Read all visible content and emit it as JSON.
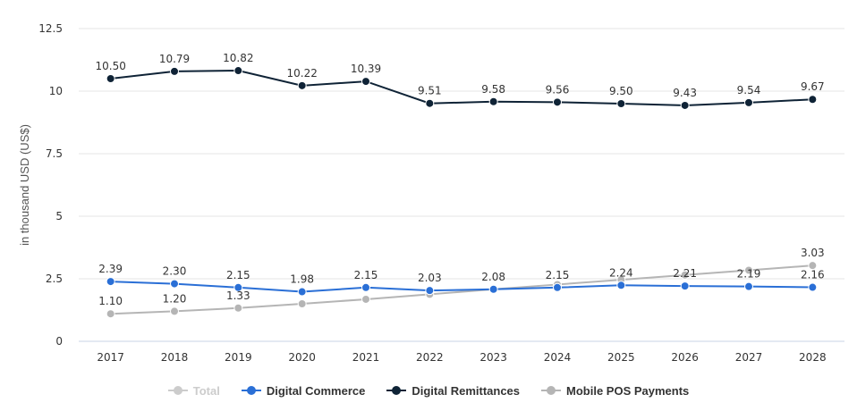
{
  "chart_data": {
    "type": "line",
    "ylabel": "in thousand USD (US$)",
    "ylim": [
      0,
      12.5
    ],
    "yticks": [
      "0",
      "2.5",
      "5",
      "7.5",
      "10",
      "12.5"
    ],
    "categories": [
      "2017",
      "2018",
      "2019",
      "2020",
      "2021",
      "2022",
      "2023",
      "2024",
      "2025",
      "2026",
      "2027",
      "2028"
    ],
    "grid": true,
    "legend_position": "bottom-center",
    "series": [
      {
        "name": "Digital Remittances",
        "color": "#0f2336",
        "values": [
          10.5,
          10.79,
          10.82,
          10.22,
          10.39,
          9.51,
          9.58,
          9.56,
          9.5,
          9.43,
          9.54,
          9.67
        ],
        "labels": [
          "10.50",
          "10.79",
          "10.82",
          "10.22",
          "10.39",
          "9.51",
          "9.58",
          "9.56",
          "9.50",
          "9.43",
          "9.54",
          "9.67"
        ]
      },
      {
        "name": "Mobile POS Payments",
        "color": "#b5b5b5",
        "values": [
          1.1,
          1.2,
          1.33,
          1.5,
          1.68,
          1.88,
          2.08,
          2.27,
          2.46,
          2.65,
          2.84,
          3.03
        ],
        "labels": [
          "1.10",
          "1.20",
          "1.33",
          "",
          "",
          "",
          "",
          "",
          "",
          "",
          "",
          "3.03"
        ]
      },
      {
        "name": "Digital Commerce",
        "color": "#2a6fd6",
        "values": [
          2.39,
          2.3,
          2.15,
          1.98,
          2.15,
          2.03,
          2.08,
          2.15,
          2.24,
          2.21,
          2.19,
          2.16
        ],
        "labels": [
          "2.39",
          "2.30",
          "2.15",
          "1.98",
          "2.15",
          "2.03",
          "2.08",
          "2.15",
          "2.24",
          "2.21",
          "2.19",
          "2.16"
        ]
      }
    ]
  },
  "legend": [
    {
      "label": "Total",
      "color": "#cccccc",
      "disabled": true
    },
    {
      "label": "Digital Commerce",
      "color": "#2a6fd6",
      "disabled": false
    },
    {
      "label": "Digital Remittances",
      "color": "#0f2336",
      "disabled": false
    },
    {
      "label": "Mobile POS Payments",
      "color": "#b5b5b5",
      "disabled": false
    }
  ]
}
